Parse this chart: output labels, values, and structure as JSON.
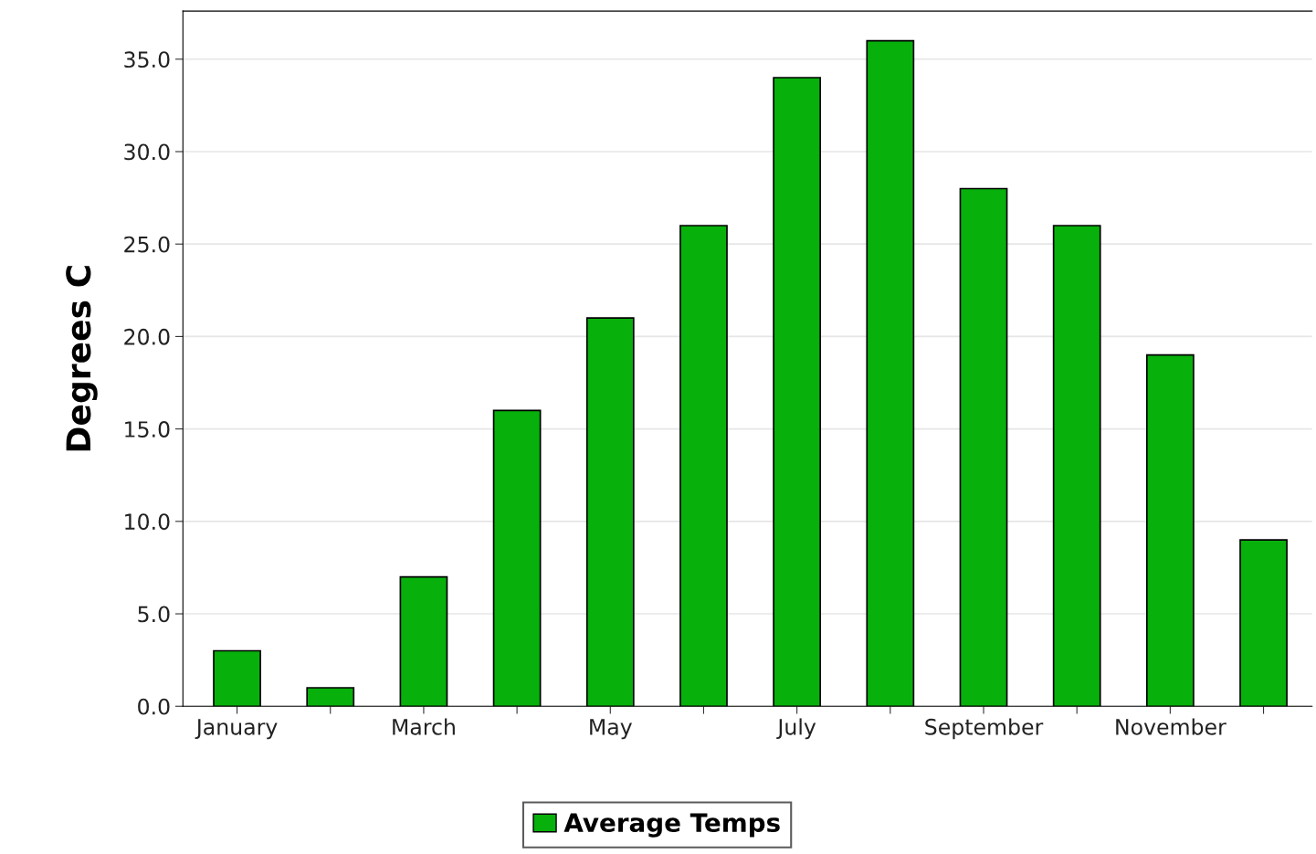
{
  "chart_data": {
    "type": "bar",
    "ylabel": "Degrees C",
    "categories": [
      "January",
      null,
      "March",
      null,
      "May",
      null,
      "July",
      null,
      "September",
      null,
      "November",
      null
    ],
    "series": [
      {
        "name": "Average Temps",
        "color": "#07b00b",
        "values": [
          3,
          1,
          7,
          16,
          21,
          26,
          34,
          36,
          28,
          26,
          19,
          9
        ]
      }
    ],
    "ylim": [
      0,
      37.6
    ],
    "yticks": [
      {
        "value": 0,
        "label": "0.0"
      },
      {
        "value": 5,
        "label": "5.0"
      },
      {
        "value": 10,
        "label": "10.0"
      },
      {
        "value": 15,
        "label": "15.0"
      },
      {
        "value": 20,
        "label": "20.0"
      },
      {
        "value": 25,
        "label": "25.0"
      },
      {
        "value": 30,
        "label": "30.0"
      },
      {
        "value": 35,
        "label": "35.0"
      }
    ],
    "grid": "y",
    "legend": "bottom"
  }
}
